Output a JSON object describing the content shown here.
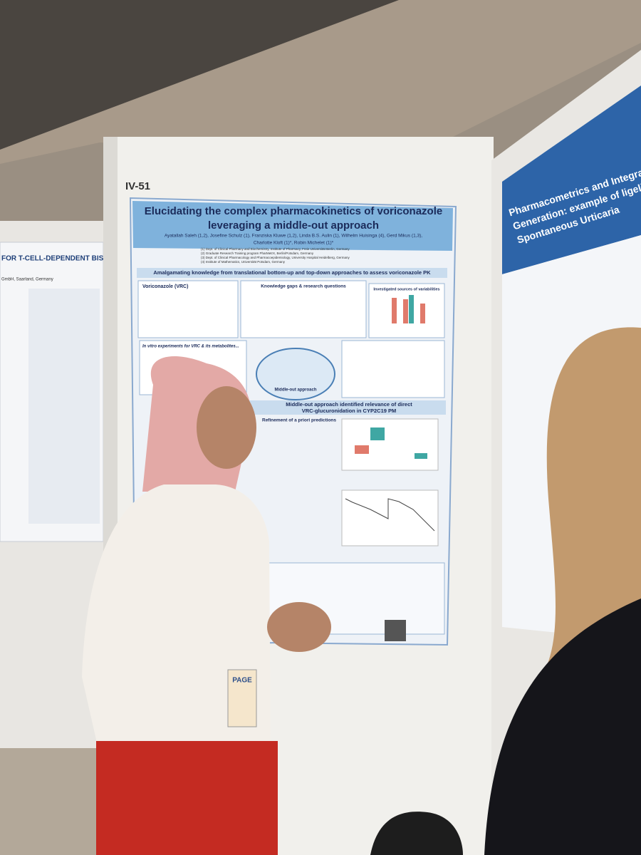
{
  "board_label": "IV-51",
  "poster": {
    "title": [
      "Elucidating the complex pharmacokinetics of voriconazole",
      "leveraging a middle-out approach"
    ],
    "authors": [
      "Ayatallah Saleh (1,2), Josefine Schulz (1), Franziska Kluwe (1,2), Linda B.S. Aulin (1), Wilhelm Huisinga (4), Gerd Mikus (1,3),",
      "Charlotte Kloft (1)*, Robin Michelet (1)*"
    ],
    "affiliations": [
      "(1) Dept. of Clinical Pharmacy and Biochemistry, Institute of Pharmacy, Freie Universität Berlin, Germany",
      "(2) Graduate Research Training program PharMetrX, Berlin/Potsdam, Germany",
      "(3) Dept. of Clinical Pharmacology and Pharmacoepidemiology, University Hospital Heidelberg, Germany",
      "(4) Institute of Mathematics, Universität Potsdam, Germany"
    ],
    "section_1": "Amalgamating knowledge from translational bottom-up and top-down approaches to assess voriconazole PK",
    "boxes": [
      "Voriconazole (VRC)",
      "Knowledge gaps & research questions",
      "Investigated sources of variabilities",
      "In vitro experiments for VRC & its metabolites...",
      "Middle-out approach"
    ],
    "section_2": [
      "Middle-out approach identified relevance of direct",
      "VRC-glucuronidation in CYP2C19 PM"
    ],
    "subheading": "Refinement of a priori predictions"
  },
  "left_poster": {
    "title": "FOR T-CELL-DEPENDENT BISPECIFIC",
    "company": "GmbH, Saarland, Germany"
  },
  "right_poster": {
    "title": [
      "Pharmacometrics and Integrated Evidence",
      "Generation: example of ligelizumab in C",
      "Spontaneous Urticaria"
    ]
  },
  "badge": "PAGE"
}
